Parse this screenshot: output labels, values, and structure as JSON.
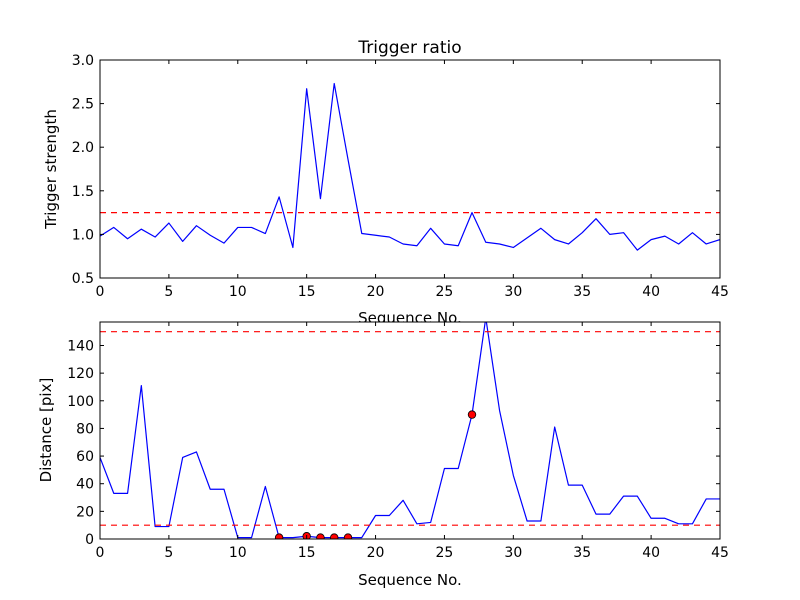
{
  "chart_data": [
    {
      "type": "line",
      "title": "Trigger ratio",
      "xlabel": "Sequence No.",
      "ylabel": "Trigger strength",
      "xlim": [
        0,
        45
      ],
      "ylim": [
        0.5,
        3.0
      ],
      "xticks": [
        "0",
        "5",
        "10",
        "15",
        "20",
        "25",
        "30",
        "35",
        "40",
        "45"
      ],
      "yticks": [
        "0.5",
        "1.0",
        "1.5",
        "2.0",
        "2.5",
        "3.0"
      ],
      "grid": false,
      "series": [
        {
          "color": "#0000ff",
          "x": [
            0,
            1,
            2,
            3,
            4,
            5,
            6,
            7,
            8,
            9,
            10,
            11,
            12,
            13,
            14,
            15,
            16,
            17,
            18,
            19,
            20,
            21,
            22,
            23,
            24,
            25,
            26,
            27,
            28,
            29,
            30,
            31,
            32,
            33,
            34,
            35,
            36,
            37,
            38,
            39,
            40,
            41,
            42,
            43,
            44,
            45
          ],
          "values": [
            0.98,
            1.08,
            0.95,
            1.06,
            0.97,
            1.13,
            0.92,
            1.1,
            0.99,
            0.9,
            1.08,
            1.08,
            1.01,
            1.43,
            0.85,
            2.67,
            1.41,
            2.73,
            1.86,
            1.01,
            0.99,
            0.97,
            0.89,
            0.87,
            1.07,
            0.89,
            0.87,
            1.25,
            0.91,
            0.89,
            0.85,
            0.96,
            1.07,
            0.94,
            0.89,
            1.02,
            1.18,
            1.0,
            1.02,
            0.82,
            0.94,
            0.98,
            0.89,
            1.02,
            0.89,
            0.94
          ]
        }
      ],
      "threshold_lines": [
        {
          "y": 1.25,
          "color": "#ff0000",
          "style": "dashed"
        }
      ]
    },
    {
      "type": "line",
      "title": "",
      "xlabel": "Sequence No.",
      "ylabel": "Distance [pix]",
      "xlim": [
        0,
        45
      ],
      "ylim": [
        0,
        157
      ],
      "xticks": [
        "0",
        "5",
        "10",
        "15",
        "20",
        "25",
        "30",
        "35",
        "40",
        "45"
      ],
      "yticks": [
        "0",
        "20",
        "40",
        "60",
        "80",
        "100",
        "120",
        "140"
      ],
      "grid": false,
      "series": [
        {
          "color": "#0000ff",
          "x": [
            0,
            1,
            2,
            3,
            4,
            5,
            6,
            7,
            8,
            9,
            10,
            11,
            12,
            13,
            14,
            15,
            16,
            17,
            18,
            19,
            20,
            21,
            22,
            23,
            24,
            25,
            26,
            27,
            28,
            29,
            30,
            31,
            32,
            33,
            34,
            35,
            36,
            37,
            38,
            39,
            40,
            41,
            42,
            43,
            44,
            45
          ],
          "values": [
            59,
            33,
            33,
            111,
            9,
            9,
            59,
            63,
            36,
            36,
            1,
            1,
            38,
            1,
            1,
            2,
            1,
            1,
            1,
            1,
            17,
            17,
            28,
            11,
            12,
            51,
            51,
            90,
            160,
            93,
            46,
            13,
            13,
            81,
            39,
            39,
            18,
            18,
            31,
            31,
            15,
            15,
            11,
            11,
            29,
            29
          ]
        }
      ],
      "markers": {
        "color": "#ff0000",
        "x": [
          13,
          15,
          16,
          17,
          18,
          27
        ],
        "y": [
          1,
          2,
          1,
          1,
          1,
          90
        ]
      },
      "threshold_lines": [
        {
          "y": 150,
          "color": "#ff0000",
          "style": "dashed"
        },
        {
          "y": 10,
          "color": "#ff0000",
          "style": "dashed"
        }
      ]
    }
  ]
}
